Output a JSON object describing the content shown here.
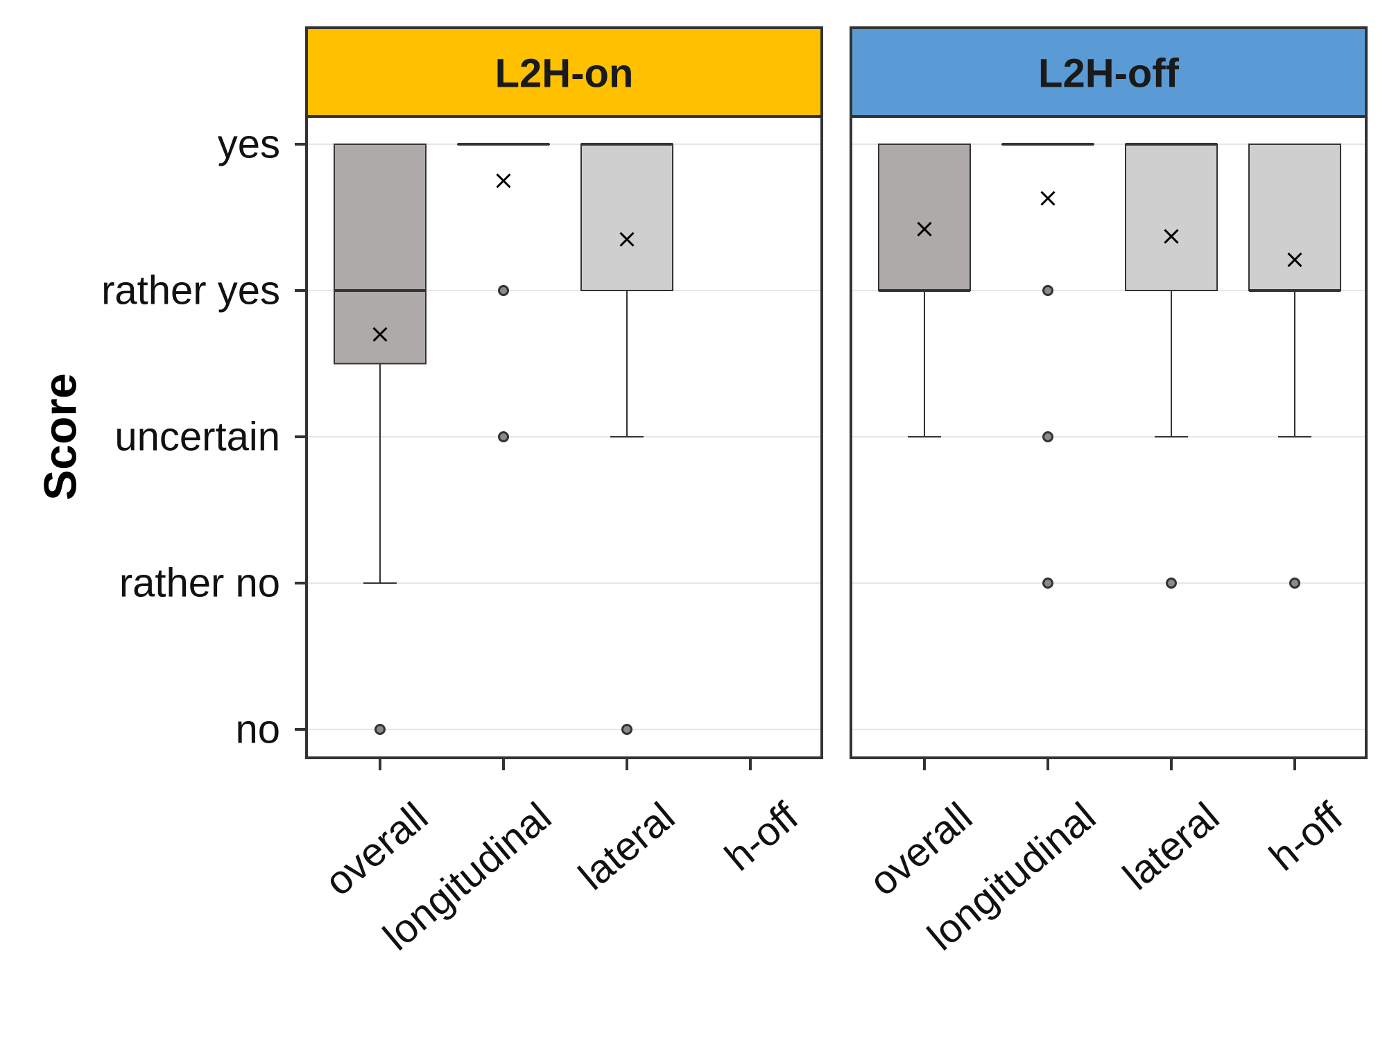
{
  "chart_data": {
    "type": "box",
    "ylabel": "Score",
    "y_levels": [
      "no",
      "rather no",
      "uncertain",
      "rather yes",
      "yes"
    ],
    "ylim": [
      1,
      5
    ],
    "grid": "horizontal",
    "categories": [
      "overall",
      "longitudinal",
      "lateral",
      "h-off"
    ],
    "facets": [
      {
        "name": "L2H-on",
        "color": "#FFC000",
        "boxes": [
          {
            "category": "overall",
            "fill": "#ADAAA9",
            "q1": 3.5,
            "median": 4,
            "q3": 5,
            "whisker_low": 2,
            "whisker_high": 5,
            "mean": 3.7,
            "outliers": [
              1
            ]
          },
          {
            "category": "longitudinal",
            "fill": "#ADAAA9",
            "q1": 5,
            "median": 5,
            "q3": 5,
            "whisker_low": 5,
            "whisker_high": 5,
            "mean": 4.75,
            "outliers": [
              4,
              3
            ]
          },
          {
            "category": "lateral",
            "fill": "#D0CFCF",
            "q1": 4,
            "median": 5,
            "q3": 5,
            "whisker_low": 3,
            "whisker_high": 5,
            "mean": 4.35,
            "outliers": [
              1
            ]
          }
        ]
      },
      {
        "name": "L2H-off",
        "color": "#5B9BD5",
        "boxes": [
          {
            "category": "overall",
            "fill": "#ADAAA9",
            "q1": 4,
            "median": 4,
            "q3": 5,
            "whisker_low": 3,
            "whisker_high": 5,
            "mean": 4.42,
            "outliers": []
          },
          {
            "category": "longitudinal",
            "fill": "#ADAAA9",
            "q1": 5,
            "median": 5,
            "q3": 5,
            "whisker_low": 5,
            "whisker_high": 5,
            "mean": 4.63,
            "outliers": [
              4,
              3,
              2
            ]
          },
          {
            "category": "lateral",
            "fill": "#D0CFCF",
            "q1": 4,
            "median": 5,
            "q3": 5,
            "whisker_low": 3,
            "whisker_high": 5,
            "mean": 4.37,
            "outliers": [
              2
            ]
          },
          {
            "category": "h-off",
            "fill": "#D0CFCF",
            "q1": 4,
            "median": 4,
            "q3": 5,
            "whisker_low": 3,
            "whisker_high": 5,
            "mean": 4.21,
            "outliers": [
              2
            ]
          }
        ]
      }
    ]
  }
}
